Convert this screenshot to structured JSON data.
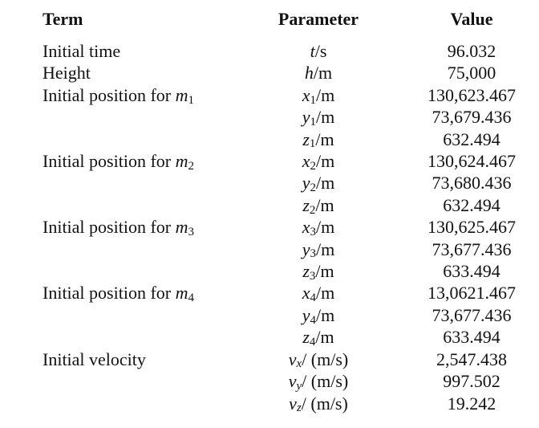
{
  "page": {
    "background_color": "#ffffff",
    "text_color": "#121212"
  },
  "table": {
    "headers": {
      "term": "Term",
      "parameter": "Parameter",
      "value": "Value"
    },
    "rows": [
      {
        "term": "Initial time",
        "p_var": "t",
        "p_unit": "/s",
        "value": "96.032"
      },
      {
        "term": "Height",
        "p_var": "h",
        "p_unit": "/m",
        "value": "75,000"
      },
      {
        "term": "Initial position for ",
        "term_var": "m",
        "term_sub": "1",
        "p_var": "x",
        "p_sub": "1",
        "p_unit": "/m",
        "value": "130,623.467"
      },
      {
        "p_var": "y",
        "p_sub": "1",
        "p_unit": "/m",
        "value": "73,679.436"
      },
      {
        "p_var": "z",
        "p_sub": "1",
        "p_unit": "/m",
        "value": "632.494"
      },
      {
        "term": "Initial position for ",
        "term_var": "m",
        "term_sub": "2",
        "p_var": "x",
        "p_sub": "2",
        "p_unit": "/m",
        "value": "130,624.467"
      },
      {
        "p_var": "y",
        "p_sub": "2",
        "p_unit": "/m",
        "value": "73,680.436"
      },
      {
        "p_var": "z",
        "p_sub": "2",
        "p_unit": "/m",
        "value": "632.494"
      },
      {
        "term": "Initial position for ",
        "term_var": "m",
        "term_sub": "3",
        "p_var": "x",
        "p_sub": "3",
        "p_unit": "/m",
        "value": "130,625.467"
      },
      {
        "p_var": "y",
        "p_sub": "3",
        "p_unit": "/m",
        "value": "73,677.436"
      },
      {
        "p_var": "z",
        "p_sub": "3",
        "p_unit": "/m",
        "value": "633.494"
      },
      {
        "term": "Initial position for ",
        "term_var": "m",
        "term_sub": "4",
        "p_var": "x",
        "p_sub": "4",
        "p_unit": "/m",
        "value": "13,0621.467"
      },
      {
        "p_var": "y",
        "p_sub": "4",
        "p_unit": "/m",
        "value": "73,677.436"
      },
      {
        "p_var": "z",
        "p_sub": "4",
        "p_unit": "/m",
        "value": "633.494"
      },
      {
        "term": "Initial velocity",
        "p_var": "v",
        "p_subi": "x",
        "p_unit": "/ (m/s)",
        "value": "2,547.438"
      },
      {
        "p_var": "v",
        "p_subi": "y",
        "p_unit": "/ (m/s)",
        "value": "997.502"
      },
      {
        "p_var": "v",
        "p_subi": "z",
        "p_unit": "/ (m/s)",
        "value": "19.242"
      }
    ]
  }
}
